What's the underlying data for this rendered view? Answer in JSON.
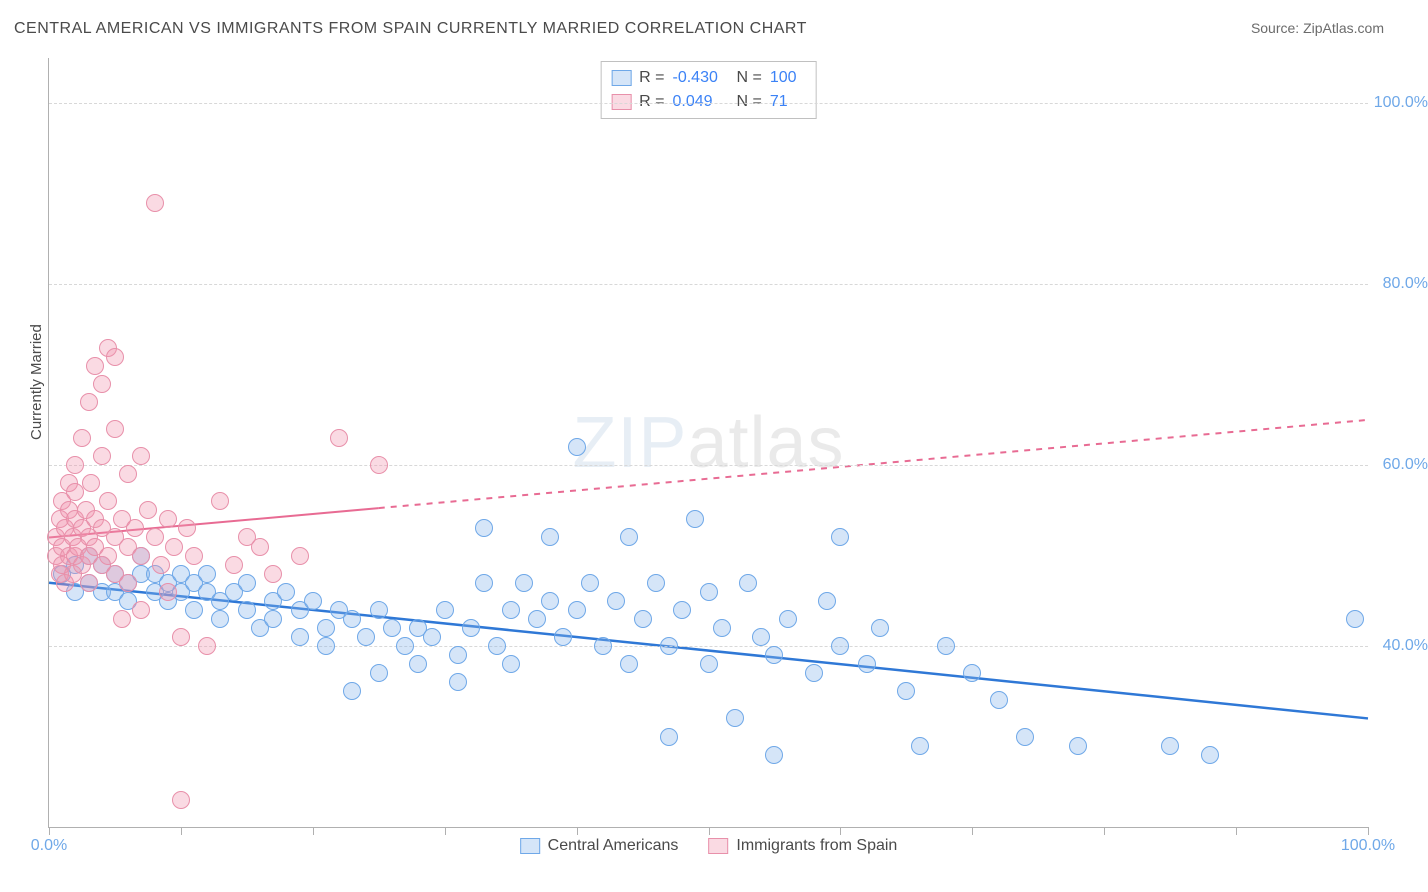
{
  "title": "CENTRAL AMERICAN VS IMMIGRANTS FROM SPAIN CURRENTLY MARRIED CORRELATION CHART",
  "source_label": "Source: ZipAtlas.com",
  "y_axis_label": "Currently Married",
  "watermark": {
    "part1": "ZIP",
    "part2": "atlas"
  },
  "chart": {
    "type": "scatter",
    "xlim": [
      0,
      100
    ],
    "ylim": [
      20,
      105
    ],
    "background_color": "#ffffff",
    "grid_color": "#d8d8d8",
    "axis_color": "#b0b0b0",
    "y_gridlines": [
      40,
      60,
      80,
      100
    ],
    "y_tick_labels": [
      "40.0%",
      "60.0%",
      "80.0%",
      "100.0%"
    ],
    "x_ticks": [
      0,
      10,
      20,
      30,
      40,
      50,
      60,
      70,
      80,
      90,
      100
    ],
    "x_tick_labels": {
      "0": "0.0%",
      "100": "100.0%"
    },
    "tick_label_color": "#6fa8e8",
    "tick_label_fontsize": 16,
    "marker_radius": 9,
    "series": [
      {
        "name": "Central Americans",
        "fill": "rgba(135,180,235,0.35)",
        "stroke": "#6fa8e8",
        "data": [
          [
            1,
            48
          ],
          [
            2,
            49
          ],
          [
            2,
            46
          ],
          [
            3,
            47
          ],
          [
            3,
            50
          ],
          [
            4,
            46
          ],
          [
            4,
            49
          ],
          [
            5,
            48
          ],
          [
            5,
            46
          ],
          [
            6,
            47
          ],
          [
            6,
            45
          ],
          [
            7,
            48
          ],
          [
            7,
            50
          ],
          [
            8,
            46
          ],
          [
            8,
            48
          ],
          [
            9,
            47
          ],
          [
            9,
            45
          ],
          [
            10,
            46
          ],
          [
            10,
            48
          ],
          [
            11,
            47
          ],
          [
            11,
            44
          ],
          [
            12,
            46
          ],
          [
            12,
            48
          ],
          [
            13,
            45
          ],
          [
            13,
            43
          ],
          [
            14,
            46
          ],
          [
            15,
            44
          ],
          [
            15,
            47
          ],
          [
            16,
            42
          ],
          [
            17,
            45
          ],
          [
            17,
            43
          ],
          [
            18,
            46
          ],
          [
            19,
            41
          ],
          [
            19,
            44
          ],
          [
            20,
            45
          ],
          [
            21,
            42
          ],
          [
            21,
            40
          ],
          [
            22,
            44
          ],
          [
            23,
            43
          ],
          [
            23,
            35
          ],
          [
            24,
            41
          ],
          [
            25,
            44
          ],
          [
            25,
            37
          ],
          [
            26,
            42
          ],
          [
            27,
            40
          ],
          [
            28,
            38
          ],
          [
            28,
            42
          ],
          [
            29,
            41
          ],
          [
            30,
            44
          ],
          [
            31,
            39
          ],
          [
            31,
            36
          ],
          [
            32,
            42
          ],
          [
            33,
            47
          ],
          [
            33,
            53
          ],
          [
            34,
            40
          ],
          [
            35,
            44
          ],
          [
            35,
            38
          ],
          [
            36,
            47
          ],
          [
            37,
            43
          ],
          [
            38,
            45
          ],
          [
            38,
            52
          ],
          [
            39,
            41
          ],
          [
            40,
            44
          ],
          [
            40,
            62
          ],
          [
            41,
            47
          ],
          [
            42,
            40
          ],
          [
            43,
            45
          ],
          [
            44,
            38
          ],
          [
            44,
            52
          ],
          [
            45,
            43
          ],
          [
            46,
            47
          ],
          [
            47,
            40
          ],
          [
            47,
            30
          ],
          [
            48,
            44
          ],
          [
            49,
            54
          ],
          [
            50,
            38
          ],
          [
            50,
            46
          ],
          [
            51,
            42
          ],
          [
            52,
            32
          ],
          [
            53,
            47
          ],
          [
            54,
            41
          ],
          [
            55,
            39
          ],
          [
            55,
            28
          ],
          [
            56,
            43
          ],
          [
            58,
            37
          ],
          [
            59,
            45
          ],
          [
            60,
            40
          ],
          [
            60,
            52
          ],
          [
            62,
            38
          ],
          [
            63,
            42
          ],
          [
            65,
            35
          ],
          [
            66,
            29
          ],
          [
            68,
            40
          ],
          [
            70,
            37
          ],
          [
            72,
            34
          ],
          [
            74,
            30
          ],
          [
            78,
            29
          ],
          [
            85,
            29
          ],
          [
            88,
            28
          ],
          [
            99,
            43
          ]
        ],
        "trend": {
          "intercept": 47.0,
          "slopePer100": -15.0,
          "color": "#2f78d6",
          "width": 2.5,
          "solid_until_x": 100
        }
      },
      {
        "name": "Immigrants from Spain",
        "fill": "rgba(240,150,175,0.35)",
        "stroke": "#e890aa",
        "data": [
          [
            0.5,
            50
          ],
          [
            0.5,
            52
          ],
          [
            0.8,
            48
          ],
          [
            0.8,
            54
          ],
          [
            1,
            51
          ],
          [
            1,
            49
          ],
          [
            1,
            56
          ],
          [
            1.2,
            53
          ],
          [
            1.2,
            47
          ],
          [
            1.5,
            50
          ],
          [
            1.5,
            58
          ],
          [
            1.5,
            55
          ],
          [
            1.8,
            52
          ],
          [
            1.8,
            48
          ],
          [
            2,
            50
          ],
          [
            2,
            54
          ],
          [
            2,
            57
          ],
          [
            2,
            60
          ],
          [
            2.2,
            51
          ],
          [
            2.5,
            49
          ],
          [
            2.5,
            53
          ],
          [
            2.5,
            63
          ],
          [
            2.8,
            55
          ],
          [
            3,
            50
          ],
          [
            3,
            52
          ],
          [
            3,
            47
          ],
          [
            3,
            67
          ],
          [
            3.2,
            58
          ],
          [
            3.5,
            51
          ],
          [
            3.5,
            54
          ],
          [
            3.5,
            71
          ],
          [
            4,
            53
          ],
          [
            4,
            49
          ],
          [
            4,
            61
          ],
          [
            4,
            69
          ],
          [
            4.5,
            56
          ],
          [
            4.5,
            50
          ],
          [
            4.5,
            73
          ],
          [
            5,
            52
          ],
          [
            5,
            48
          ],
          [
            5,
            64
          ],
          [
            5,
            72
          ],
          [
            5.5,
            54
          ],
          [
            5.5,
            43
          ],
          [
            6,
            51
          ],
          [
            6,
            59
          ],
          [
            6,
            47
          ],
          [
            6.5,
            53
          ],
          [
            7,
            50
          ],
          [
            7,
            61
          ],
          [
            7,
            44
          ],
          [
            7.5,
            55
          ],
          [
            8,
            52
          ],
          [
            8,
            89
          ],
          [
            8.5,
            49
          ],
          [
            9,
            54
          ],
          [
            9,
            46
          ],
          [
            9.5,
            51
          ],
          [
            10,
            41
          ],
          [
            10,
            23
          ],
          [
            10.5,
            53
          ],
          [
            11,
            50
          ],
          [
            12,
            40
          ],
          [
            13,
            56
          ],
          [
            14,
            49
          ],
          [
            15,
            52
          ],
          [
            16,
            51
          ],
          [
            17,
            48
          ],
          [
            19,
            50
          ],
          [
            22,
            63
          ],
          [
            25,
            60
          ]
        ],
        "trend": {
          "intercept": 52.0,
          "slopePer100": 13.0,
          "color": "#e86b93",
          "width": 2,
          "solid_until_x": 25
        }
      }
    ]
  },
  "stats_box": {
    "rows": [
      {
        "swatch_fill": "rgba(135,180,235,0.35)",
        "swatch_stroke": "#6fa8e8",
        "r_label": "R =",
        "r": "-0.430",
        "n_label": "N =",
        "n": "100"
      },
      {
        "swatch_fill": "rgba(240,150,175,0.35)",
        "swatch_stroke": "#e890aa",
        "r_label": "R =",
        "r": "0.049",
        "n_label": "N =",
        "n": "71"
      }
    ]
  },
  "legend_bottom": [
    {
      "swatch_fill": "rgba(135,180,235,0.35)",
      "swatch_stroke": "#6fa8e8",
      "label": "Central Americans"
    },
    {
      "swatch_fill": "rgba(240,150,175,0.35)",
      "swatch_stroke": "#e890aa",
      "label": "Immigrants from Spain"
    }
  ]
}
